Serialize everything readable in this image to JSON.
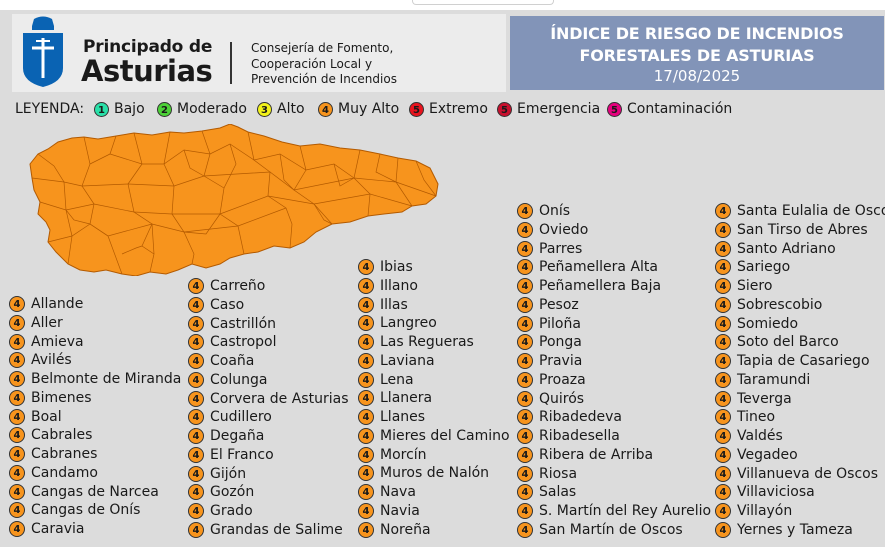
{
  "header": {
    "org_line1": "Principado de",
    "org_line2": "Asturias",
    "dept_lines": [
      "Consejería de Fomento,",
      "Cooperación Local y",
      "Prevención de Incendios"
    ],
    "title_line1": "ÍNDICE DE RIESGO DE INCENDIOS",
    "title_line2": "FORESTALES DE ASTURIAS",
    "date": "17/08/2025"
  },
  "legend": {
    "title": "LEYENDA:",
    "items": [
      {
        "level": "1",
        "label": "Bajo",
        "color": "#29e0a8"
      },
      {
        "level": "2",
        "label": "Moderado",
        "color": "#4cd137"
      },
      {
        "level": "3",
        "label": "Alto",
        "color": "#f2f21a"
      },
      {
        "level": "4",
        "label": "Muy Alto",
        "color": "#f7941d"
      },
      {
        "level": "5",
        "label": "Extremo",
        "color": "#e8141e"
      },
      {
        "level": "5",
        "label": "Emergencia",
        "color": "#c8102e"
      },
      {
        "level": "5",
        "label": "Contaminación",
        "color": "#e6007e"
      }
    ]
  },
  "map": {
    "fill_color": "#f7941d",
    "border_color": "#b35a00"
  },
  "municipalities": {
    "col1": [
      "Allande",
      "Aller",
      "Amieva",
      "Avilés",
      "Belmonte de Miranda",
      "Bimenes",
      "Boal",
      "Cabrales",
      "Cabranes",
      "Candamo",
      "Cangas de Narcea",
      "Cangas de Onís",
      "Caravia"
    ],
    "col2": [
      "Carreño",
      "Caso",
      "Castrillón",
      "Castropol",
      "Coaña",
      "Colunga",
      "Corvera de Asturias",
      "Cudillero",
      "Degaña",
      "El Franco",
      "Gijón",
      "Gozón",
      "Grado",
      "Grandas de Salime"
    ],
    "col3": [
      "Ibias",
      "Illano",
      "Illas",
      "Langreo",
      "Las Regueras",
      "Laviana",
      "Lena",
      "Llanera",
      "Llanes",
      "Mieres del Camino",
      "Morcín",
      "Muros de Nalón",
      "Nava",
      "Navia",
      "Noreña"
    ],
    "col4": [
      "Onís",
      "Oviedo",
      "Parres",
      "Peñamellera Alta",
      "Peñamellera Baja",
      "Pesoz",
      "Piloña",
      "Ponga",
      "Pravia",
      "Proaza",
      "Quirós",
      "Ribadedeva",
      "Ribadesella",
      "Ribera de Arriba",
      "Riosa",
      "Salas",
      "S. Martín del Rey Aurelio",
      "San Martín de Oscos"
    ],
    "col5": [
      "Santa Eulalia de Oscos",
      "San Tirso de Abres",
      "Santo Adriano",
      "Sariego",
      "Siero",
      "Sobrescobio",
      "Somiedo",
      "Soto del Barco",
      "Tapia de Casariego",
      "Taramundi",
      "Teverga",
      "Tineo",
      "Valdés",
      "Vegadeo",
      "Villanueva de Oscos",
      "Villaviciosa",
      "Villayón",
      "Yernes y Tameza"
    ],
    "level": "4"
  }
}
